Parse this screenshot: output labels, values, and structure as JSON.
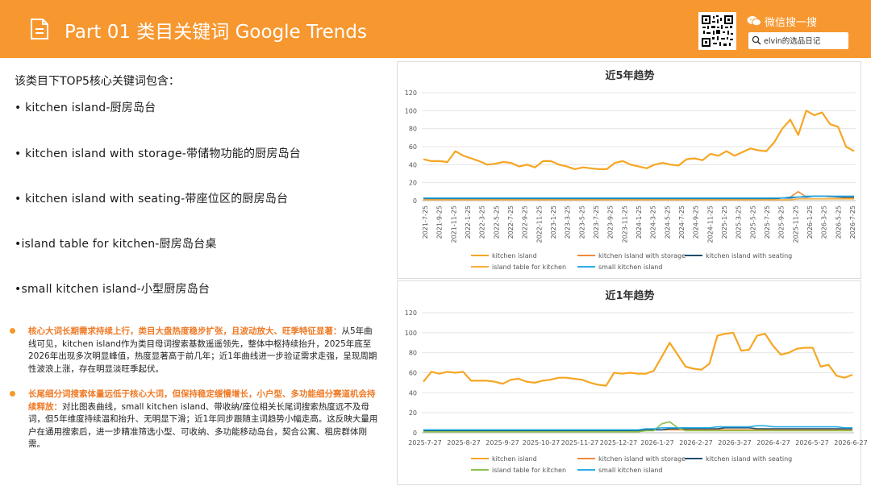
{
  "header": {
    "title": "Part 01 类目关键词 Google Trends",
    "wechat_label": "微信搜一搜",
    "search_text": "elvin的选品日记",
    "icons": [
      "document-icon",
      "qr-code-icon",
      "wechat-icon",
      "search-icon"
    ],
    "background_color": "#f7972f"
  },
  "intro": "该类目下TOP5核心关键词包含：",
  "keywords": [
    "• kitchen island-厨房岛台",
    "• kitchen island with storage-带储物功能的厨房岛台",
    "• kitchen island with seating-带座位区的厨房岛台",
    "•island table for kitchen-厨房岛台桌",
    "•small kitchen island-小型厨房岛台"
  ],
  "insights": [
    {
      "highlight": "核心大词长期需求持续上行，类目大盘热度稳步扩张，且波动放大、旺季特征显著：",
      "body": "从5年曲线可见，kitchen island作为类目母词搜索基数遥遥领先，整体中枢持续抬升，2025年底至2026年出现多次明显峰值，热度显著高于前几年；近1年曲线进一步验证需求走强，呈现周期性波浪上涨，存在明显淡旺季起伏。"
    },
    {
      "highlight": "长尾细分词搜索体量远低于核心大词，但保持稳定缓慢增长，小户型、多功能细分赛道机会持续释放：",
      "body": "对比图表曲线，small kitchen island、带收纳/座位相关长尾词搜索热度远不及母词，但5年维度持续温和抬升、无明显下滑；近1年同步跟随主词趋势小幅走高。这反映大量用户在通用搜索后，进一步精准筛选小型、可收纳、多功能移动岛台，契合公寓、租房群体刚需。"
    }
  ],
  "chart_data": [
    {
      "type": "line",
      "title": "近5年趋势",
      "ylim": [
        0,
        120
      ],
      "yticks": [
        0,
        20,
        40,
        60,
        80,
        100,
        120
      ],
      "grid": true,
      "legend_position": "bottom",
      "x_tick_labels": [
        "2021-7-25",
        "2021-9-25",
        "2021-11-25",
        "2022-1-25",
        "2022-3-25",
        "2022-5-25",
        "2022-7-25",
        "2022-9-25",
        "2022-11-25",
        "2023-1-25",
        "2023-3-25",
        "2023-5-25",
        "2023-7-25",
        "2023-9-25",
        "2023-11-25",
        "2024-1-25",
        "2024-3-25",
        "2024-5-25",
        "2024-7-25",
        "2024-9-25",
        "2024-11-25",
        "2025-1-25",
        "2025-3-25",
        "2025-5-25",
        "2025-7-25",
        "2025-9-25",
        "2025-11-25",
        "2026-1-25",
        "2026-3-25",
        "2026-5-25",
        "2026-7-25"
      ],
      "series": [
        {
          "name": "kitchen island",
          "color": "#f6a623",
          "values": [
            46,
            44,
            44,
            43,
            55,
            50,
            47,
            44,
            40,
            41,
            43,
            42,
            38,
            40,
            37,
            44,
            44,
            40,
            38,
            35,
            37,
            36,
            35,
            35,
            42,
            44,
            40,
            38,
            36,
            40,
            42,
            40,
            39,
            46,
            47,
            45,
            52,
            50,
            55,
            50,
            54,
            58,
            56,
            55,
            65,
            80,
            90,
            73,
            100,
            95,
            98,
            85,
            82,
            60,
            55
          ]
        },
        {
          "name": "kitchen island with storage",
          "color": "#f08a3a",
          "values": [
            2,
            2,
            2,
            2,
            2,
            2,
            2,
            2,
            2,
            2,
            2,
            2,
            2,
            2,
            2,
            2,
            2,
            2,
            2,
            2,
            2,
            2,
            2,
            2,
            2,
            2,
            2,
            2,
            2,
            2,
            2,
            2,
            2,
            2,
            2,
            2,
            2,
            2,
            2,
            2,
            2,
            2,
            2,
            3,
            3,
            3,
            4,
            10,
            4,
            5,
            5,
            4,
            4,
            3,
            3
          ]
        },
        {
          "name": "kitchen island with seating",
          "color": "#1f4e6e",
          "values": [
            2,
            2,
            2,
            2,
            2,
            2,
            2,
            2,
            2,
            2,
            2,
            2,
            2,
            2,
            2,
            2,
            2,
            2,
            2,
            2,
            2,
            2,
            2,
            2,
            2,
            2,
            2,
            2,
            2,
            2,
            2,
            2,
            2,
            2,
            2,
            2,
            2,
            2,
            2,
            2,
            2,
            2,
            2,
            2,
            2,
            3,
            3,
            4,
            4,
            5,
            5,
            5,
            4,
            4,
            4
          ]
        },
        {
          "name": "island table for kitchen",
          "color": "#f5b041",
          "values": [
            1,
            1,
            1,
            1,
            1,
            1,
            1,
            1,
            1,
            1,
            1,
            1,
            1,
            1,
            1,
            1,
            1,
            1,
            1,
            1,
            1,
            1,
            1,
            1,
            1,
            1,
            1,
            1,
            1,
            1,
            1,
            1,
            1,
            1,
            1,
            1,
            1,
            1,
            1,
            1,
            1,
            1,
            1,
            1,
            1,
            1,
            1,
            2,
            2,
            2,
            2,
            2,
            2,
            2,
            2
          ]
        },
        {
          "name": "small kitchen island",
          "color": "#29aee6",
          "values": [
            3,
            3,
            3,
            3,
            3,
            3,
            3,
            3,
            3,
            3,
            3,
            3,
            3,
            3,
            3,
            3,
            3,
            3,
            3,
            3,
            3,
            3,
            3,
            3,
            3,
            3,
            3,
            3,
            3,
            3,
            3,
            3,
            3,
            3,
            3,
            3,
            3,
            3,
            3,
            3,
            3,
            3,
            3,
            3,
            3,
            3,
            4,
            4,
            5,
            5,
            5,
            5,
            5,
            5,
            5
          ]
        }
      ]
    },
    {
      "type": "line",
      "title": "近1年趋势",
      "ylim": [
        0,
        120
      ],
      "yticks": [
        0,
        20,
        40,
        60,
        80,
        100,
        120
      ],
      "grid": true,
      "legend_position": "bottom",
      "x_tick_labels": [
        "2025-7-27",
        "2025-8-27",
        "2025-9-27",
        "2025-10-27",
        "2025-11-27",
        "2025-12-27",
        "2026-1-27",
        "2026-2-27",
        "2026-3-27",
        "2026-4-27",
        "2026-5-27",
        "2026-6-27"
      ],
      "series": [
        {
          "name": "kitchen island",
          "color": "#f6a623",
          "values": [
            51,
            61,
            59,
            61,
            60,
            61,
            52,
            52,
            52,
            51,
            49,
            53,
            54,
            51,
            50,
            52,
            53,
            55,
            55,
            54,
            53,
            50,
            48,
            47,
            60,
            59,
            60,
            59,
            59,
            62,
            76,
            90,
            78,
            66,
            64,
            63,
            69,
            97,
            99,
            100,
            82,
            83,
            97,
            99,
            87,
            78,
            80,
            84,
            85,
            85,
            66,
            68,
            57,
            55,
            58
          ]
        },
        {
          "name": "kitchen island with storage",
          "color": "#f08a3a",
          "values": [
            2,
            2,
            2,
            2,
            2,
            2,
            2,
            2,
            2,
            2,
            2,
            2,
            2,
            2,
            2,
            2,
            2,
            2,
            2,
            2,
            2,
            2,
            2,
            2,
            2,
            2,
            2,
            2,
            3,
            3,
            3,
            3,
            3,
            3,
            3,
            3,
            3,
            3,
            3,
            3,
            3,
            3,
            3,
            3,
            3,
            3,
            3,
            3,
            3,
            3,
            3,
            3,
            3,
            3,
            3
          ]
        },
        {
          "name": "kitchen island with seating",
          "color": "#1f4e6e",
          "values": [
            2,
            2,
            2,
            2,
            2,
            2,
            2,
            2,
            2,
            2,
            2,
            2,
            2,
            2,
            2,
            2,
            2,
            2,
            2,
            2,
            2,
            2,
            2,
            2,
            2,
            2,
            2,
            2,
            3,
            3,
            3,
            4,
            4,
            4,
            4,
            4,
            4,
            4,
            5,
            5,
            5,
            5,
            4,
            4,
            4,
            4,
            4,
            4,
            4,
            4,
            4,
            4,
            4,
            4,
            4
          ]
        },
        {
          "name": "island table for kitchen",
          "color": "#8bc34a",
          "values": [
            1,
            1,
            1,
            1,
            1,
            1,
            1,
            1,
            1,
            1,
            1,
            1,
            1,
            1,
            1,
            1,
            1,
            1,
            1,
            1,
            1,
            1,
            1,
            1,
            1,
            1,
            1,
            1,
            2,
            2,
            9,
            11,
            5,
            2,
            2,
            2,
            2,
            2,
            2,
            2,
            2,
            2,
            2,
            2,
            2,
            2,
            2,
            2,
            2,
            2,
            2,
            2,
            2,
            2,
            2
          ]
        },
        {
          "name": "small kitchen island",
          "color": "#29aee6",
          "values": [
            3,
            3,
            3,
            3,
            3,
            3,
            3,
            3,
            3,
            3,
            3,
            3,
            3,
            3,
            3,
            3,
            3,
            3,
            3,
            3,
            3,
            3,
            3,
            3,
            3,
            3,
            3,
            3,
            4,
            4,
            5,
            5,
            5,
            5,
            5,
            5,
            5,
            6,
            6,
            6,
            6,
            6,
            7,
            7,
            6,
            6,
            6,
            6,
            6,
            6,
            6,
            6,
            6,
            5,
            5
          ]
        }
      ]
    }
  ]
}
